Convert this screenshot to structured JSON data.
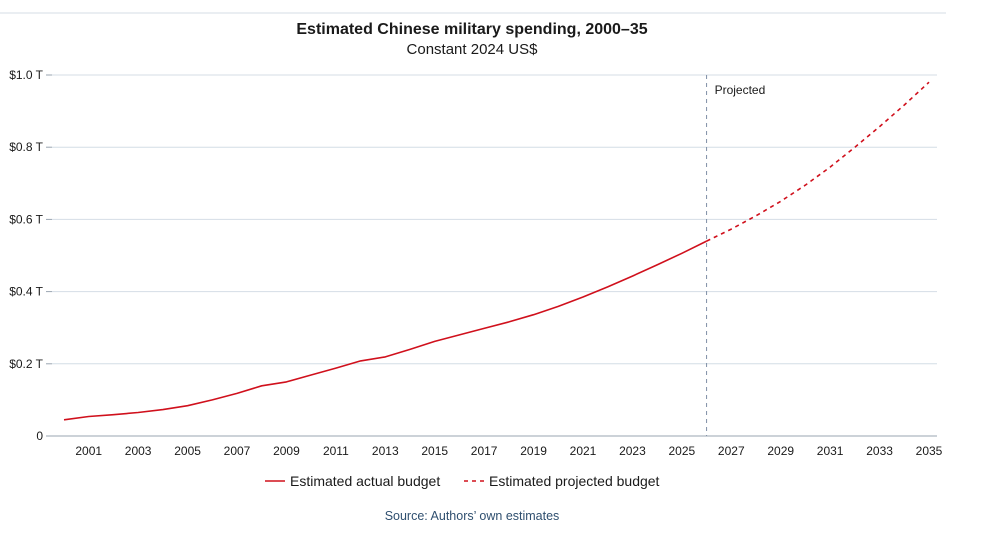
{
  "chart_data": {
    "type": "line",
    "title": "Estimated Chinese military spending, 2000–35",
    "subtitle": "Constant 2024 US$",
    "source": "Source: Authors’ own estimates",
    "annotation": "Projected",
    "projection_start_year": 2026,
    "xlim": [
      2000,
      2035
    ],
    "ylim": [
      0,
      1.0
    ],
    "x_ticks": [
      2001,
      2003,
      2005,
      2007,
      2009,
      2011,
      2013,
      2015,
      2017,
      2019,
      2021,
      2023,
      2025,
      2027,
      2029,
      2031,
      2033,
      2035
    ],
    "x_tick_labels": [
      "2001",
      "2003",
      "2005",
      "2007",
      "2009",
      "2011",
      "2013",
      "2015",
      "2017",
      "2019",
      "2021",
      "2023",
      "2025",
      "2027",
      "2029",
      "2031",
      "2033",
      "2035"
    ],
    "y_ticks": [
      0,
      0.2,
      0.4,
      0.6,
      0.8,
      1.0
    ],
    "y_tick_labels": [
      "0",
      "$0.2 T",
      "$0.4 T",
      "$0.6 T",
      "$0.8 T",
      "$1.0 T"
    ],
    "grid": true,
    "legend_position": "bottom",
    "colors": {
      "series": "#d0101c",
      "grid": "#d4dde6",
      "projection_line": "#7f8fa6",
      "axis": "#9aa5b1"
    },
    "series": [
      {
        "name": "Estimated actual budget",
        "style": "solid",
        "x": [
          2000,
          2001,
          2002,
          2003,
          2004,
          2005,
          2006,
          2007,
          2008,
          2009,
          2010,
          2011,
          2012,
          2013,
          2014,
          2015,
          2016,
          2017,
          2018,
          2019,
          2020,
          2021,
          2022,
          2023,
          2024,
          2025,
          2026
        ],
        "values": [
          0.045,
          0.054,
          0.059,
          0.065,
          0.073,
          0.084,
          0.1,
          0.118,
          0.139,
          0.15,
          0.169,
          0.188,
          0.208,
          0.219,
          0.24,
          0.262,
          0.28,
          0.298,
          0.316,
          0.336,
          0.359,
          0.385,
          0.413,
          0.443,
          0.474,
          0.506,
          0.54
        ]
      },
      {
        "name": "Estimated projected budget",
        "style": "dashed",
        "x": [
          2026,
          2027,
          2028,
          2029,
          2030,
          2031,
          2032,
          2033,
          2034,
          2035
        ],
        "values": [
          0.54,
          0.573,
          0.61,
          0.65,
          0.695,
          0.745,
          0.8,
          0.857,
          0.917,
          0.98
        ]
      }
    ]
  }
}
